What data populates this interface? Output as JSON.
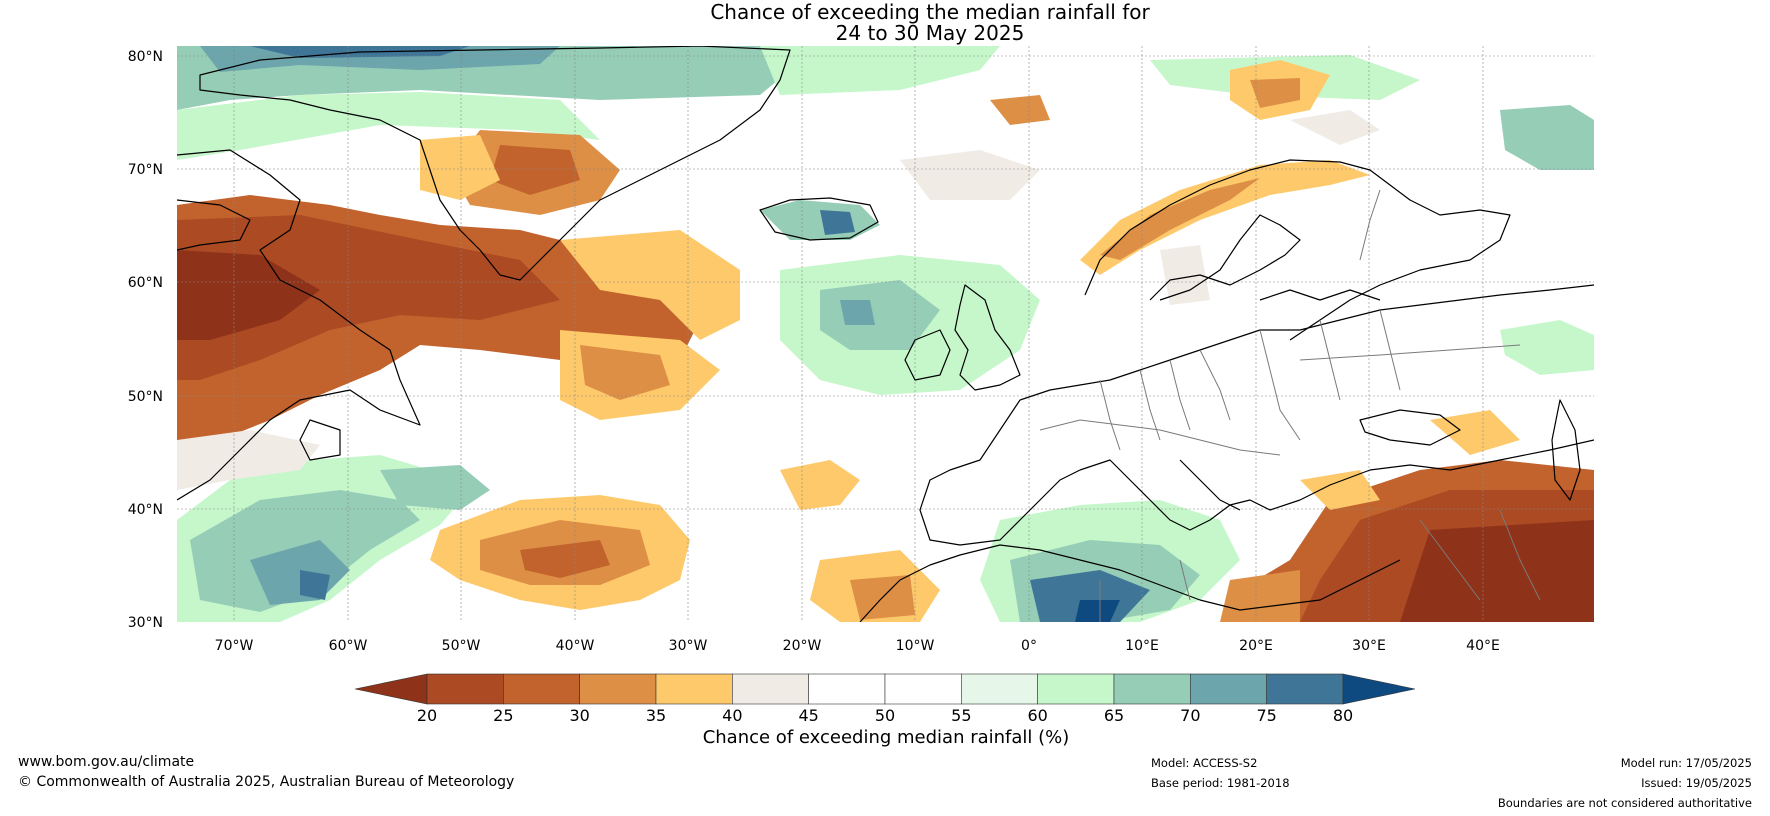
{
  "title_line1": "Chance of exceeding the median rainfall for",
  "title_line2": "24 to 30 May 2025",
  "lat_labels": [
    "80°N",
    "70°N",
    "60°N",
    "50°N",
    "40°N",
    "30°N"
  ],
  "lon_labels": [
    "70°W",
    "60°W",
    "50°W",
    "40°W",
    "30°W",
    "20°W",
    "10°W",
    "0°",
    "10°E",
    "20°E",
    "30°E",
    "40°E"
  ],
  "colorbar": {
    "label": "Chance of exceeding median rainfall (%)",
    "ticks": [
      "20",
      "25",
      "30",
      "35",
      "40",
      "45",
      "50",
      "55",
      "60",
      "65",
      "70",
      "75",
      "80"
    ],
    "colors": [
      "#ab4a23",
      "#c2622d",
      "#de8f46",
      "#fec96b",
      "#f1ebe6",
      "#ffffff",
      "#ffffff",
      "#e6f6e8",
      "#c5f7cb",
      "#96cdb7",
      "#6ca5ab",
      "#3f7698"
    ],
    "under_color": "#8e3319",
    "over_color": "#0e4a80"
  },
  "footer": {
    "url": "www.bom.gov.au/climate",
    "copyright": "© Commonwealth of Australia 2025, Australian Bureau of Meteorology",
    "model": "Model: ACCESS-S2",
    "base_period": "Base period: 1981-2018",
    "model_run": "Model run: 17/05/2025",
    "issued": "Issued: 19/05/2025",
    "disclaimer": "Boundaries are not considered authoritative"
  }
}
